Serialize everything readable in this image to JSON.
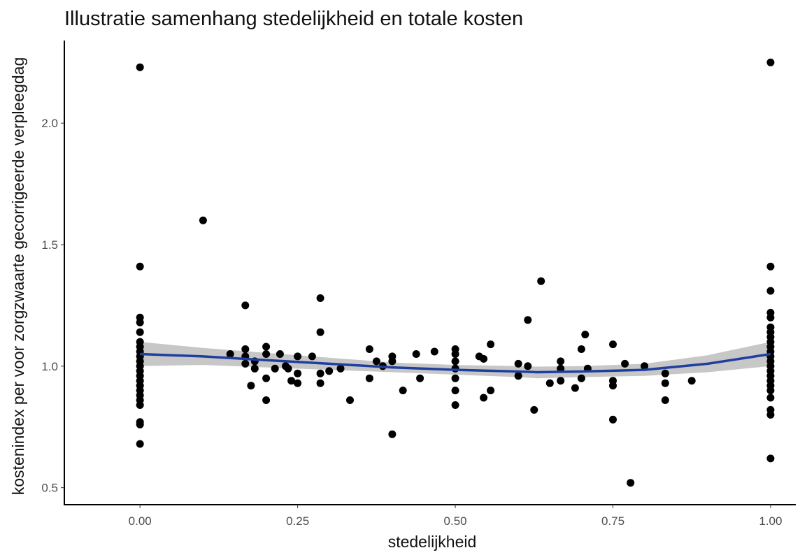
{
  "chart_data": {
    "type": "scatter",
    "title": "Illustratie samenhang stedelijkheid en totale kosten",
    "xlabel": "stedelijkheid",
    "ylabel": "kostenindex per voor zorgzwaarte gecorrigeerde verpleegdag",
    "xlim": [
      -0.12,
      1.04
    ],
    "ylim": [
      0.43,
      2.34
    ],
    "xticks": [
      0,
      0.25,
      0.5,
      0.75,
      1
    ],
    "xtick_labels": [
      "0.00",
      "0.25",
      "0.50",
      "0.75",
      "1.00"
    ],
    "yticks": [
      0.5,
      1.0,
      1.5,
      2.0
    ],
    "ytick_labels": [
      "0.5",
      "1.0",
      "1.5",
      "2.0"
    ],
    "grid": false,
    "colors": {
      "points": "#000000",
      "trend_line": "#1f3f9e",
      "confidence_band": "#bdbdbd"
    },
    "points": [
      [
        0,
        2.23
      ],
      [
        0,
        1.41
      ],
      [
        0,
        1.2
      ],
      [
        0,
        1.18
      ],
      [
        0,
        1.14
      ],
      [
        0,
        1.1
      ],
      [
        0,
        1.08
      ],
      [
        0,
        1.06
      ],
      [
        0,
        1.04
      ],
      [
        0,
        1.02
      ],
      [
        0,
        1.0
      ],
      [
        0,
        0.98
      ],
      [
        0,
        0.96
      ],
      [
        0,
        0.94
      ],
      [
        0,
        0.92
      ],
      [
        0,
        0.9
      ],
      [
        0,
        0.88
      ],
      [
        0,
        0.86
      ],
      [
        0,
        0.84
      ],
      [
        0,
        0.77
      ],
      [
        0,
        0.76
      ],
      [
        0,
        0.68
      ],
      [
        0.1,
        1.6
      ],
      [
        0.143,
        1.05
      ],
      [
        0.167,
        1.25
      ],
      [
        0.167,
        1.07
      ],
      [
        0.167,
        1.04
      ],
      [
        0.167,
        1.01
      ],
      [
        0.176,
        0.92
      ],
      [
        0.182,
        1.02
      ],
      [
        0.182,
        0.99
      ],
      [
        0.2,
        1.08
      ],
      [
        0.2,
        1.05
      ],
      [
        0.2,
        0.95
      ],
      [
        0.2,
        0.86
      ],
      [
        0.214,
        0.99
      ],
      [
        0.222,
        1.05
      ],
      [
        0.231,
        1.0
      ],
      [
        0.235,
        0.99
      ],
      [
        0.24,
        0.94
      ],
      [
        0.25,
        1.04
      ],
      [
        0.25,
        0.97
      ],
      [
        0.25,
        0.93
      ],
      [
        0.273,
        1.04
      ],
      [
        0.286,
        1.28
      ],
      [
        0.286,
        1.14
      ],
      [
        0.286,
        0.97
      ],
      [
        0.286,
        0.93
      ],
      [
        0.3,
        0.98
      ],
      [
        0.318,
        0.99
      ],
      [
        0.333,
        0.86
      ],
      [
        0.364,
        1.07
      ],
      [
        0.364,
        0.95
      ],
      [
        0.375,
        1.02
      ],
      [
        0.385,
        1.0
      ],
      [
        0.4,
        1.04
      ],
      [
        0.4,
        1.02
      ],
      [
        0.4,
        0.72
      ],
      [
        0.417,
        0.9
      ],
      [
        0.438,
        1.05
      ],
      [
        0.444,
        0.95
      ],
      [
        0.467,
        1.06
      ],
      [
        0.5,
        1.07
      ],
      [
        0.5,
        1.05
      ],
      [
        0.5,
        1.02
      ],
      [
        0.5,
        0.99
      ],
      [
        0.5,
        0.95
      ],
      [
        0.5,
        0.9
      ],
      [
        0.5,
        0.84
      ],
      [
        0.538,
        1.04
      ],
      [
        0.545,
        1.03
      ],
      [
        0.545,
        0.87
      ],
      [
        0.556,
        1.09
      ],
      [
        0.556,
        0.9
      ],
      [
        0.6,
        1.01
      ],
      [
        0.6,
        0.96
      ],
      [
        0.615,
        1.19
      ],
      [
        0.615,
        1.0
      ],
      [
        0.625,
        0.82
      ],
      [
        0.636,
        1.35
      ],
      [
        0.65,
        0.93
      ],
      [
        0.667,
        1.02
      ],
      [
        0.667,
        0.99
      ],
      [
        0.667,
        0.94
      ],
      [
        0.69,
        0.91
      ],
      [
        0.7,
        1.07
      ],
      [
        0.7,
        0.95
      ],
      [
        0.706,
        1.13
      ],
      [
        0.71,
        0.99
      ],
      [
        0.75,
        1.09
      ],
      [
        0.75,
        0.94
      ],
      [
        0.75,
        0.92
      ],
      [
        0.75,
        0.78
      ],
      [
        0.769,
        1.01
      ],
      [
        0.778,
        0.52
      ],
      [
        0.8,
        1.0
      ],
      [
        0.833,
        0.97
      ],
      [
        0.833,
        0.93
      ],
      [
        0.833,
        0.86
      ],
      [
        0.875,
        0.94
      ],
      [
        1,
        2.25
      ],
      [
        1,
        1.41
      ],
      [
        1,
        1.31
      ],
      [
        1,
        1.22
      ],
      [
        1,
        1.2
      ],
      [
        1,
        1.16
      ],
      [
        1,
        1.14
      ],
      [
        1,
        1.12
      ],
      [
        1,
        1.1
      ],
      [
        1,
        1.08
      ],
      [
        1,
        1.06
      ],
      [
        1,
        1.04
      ],
      [
        1,
        1.02
      ],
      [
        1,
        1.0
      ],
      [
        1,
        0.98
      ],
      [
        1,
        0.96
      ],
      [
        1,
        0.94
      ],
      [
        1,
        0.92
      ],
      [
        1,
        0.9
      ],
      [
        1,
        0.87
      ],
      [
        1,
        0.82
      ],
      [
        1,
        0.8
      ],
      [
        1,
        0.62
      ]
    ],
    "trend": {
      "x": [
        0,
        0.1,
        0.2,
        0.3,
        0.4,
        0.5,
        0.6,
        0.63,
        0.7,
        0.8,
        0.9,
        1.0
      ],
      "y": [
        1.05,
        1.04,
        1.025,
        1.01,
        0.995,
        0.985,
        0.978,
        0.975,
        0.978,
        0.985,
        1.01,
        1.05
      ],
      "lower": [
        1.0,
        1.005,
        0.995,
        0.985,
        0.975,
        0.965,
        0.955,
        0.95,
        0.955,
        0.96,
        0.975,
        1.0
      ],
      "upper": [
        1.1,
        1.075,
        1.055,
        1.035,
        1.015,
        1.005,
        1.0,
        0.998,
        1.0,
        1.01,
        1.045,
        1.1
      ]
    }
  }
}
